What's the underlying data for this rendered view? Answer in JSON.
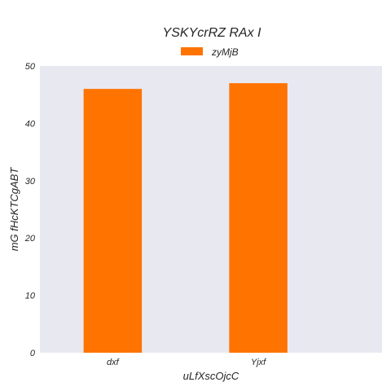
{
  "chart_data": {
    "type": "bar",
    "title": "YSKYcrRZ RAx I",
    "xlabel": "uLfXscOjcC",
    "ylabel": "mG fHcKTCgABT",
    "categories": [
      "dxf",
      "Yjxf"
    ],
    "series": [
      {
        "name": "zyMjB",
        "values": [
          46,
          47
        ]
      }
    ],
    "ylim": [
      0,
      50
    ],
    "yticks": [
      0,
      10,
      20,
      30,
      40,
      50
    ],
    "grid": false,
    "legend": "top-center",
    "colors": {
      "bar": "#ff7300",
      "plot_background": "#e8e8f1",
      "text": "#262626"
    }
  }
}
